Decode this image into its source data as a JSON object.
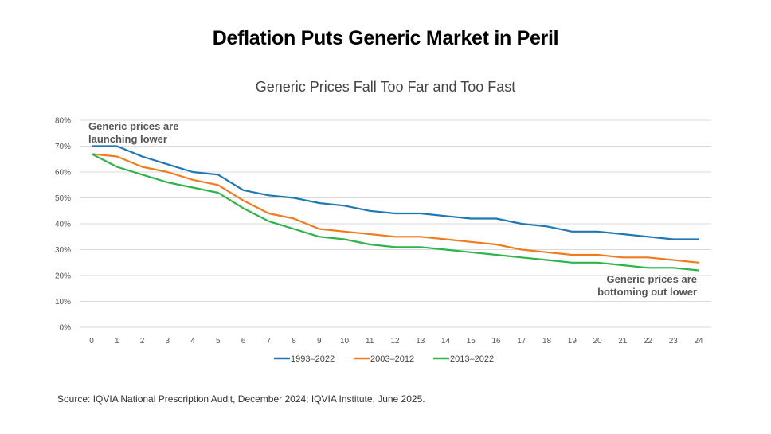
{
  "page": {
    "title": "Deflation Puts Generic Market in Peril",
    "source": "Source: IQVIA National Prescription Audit, December 2024; IQVIA Institute, June 2025."
  },
  "chart_data": {
    "type": "line",
    "title": "Generic Prices Fall Too Far and Too Fast",
    "xlabel": "",
    "ylabel": "",
    "x": [
      0,
      1,
      2,
      3,
      4,
      5,
      6,
      7,
      8,
      9,
      10,
      11,
      12,
      13,
      14,
      15,
      16,
      17,
      18,
      19,
      20,
      21,
      22,
      23,
      24
    ],
    "ylim": [
      0,
      80
    ],
    "yticks": [
      "0%",
      "10%",
      "20%",
      "30%",
      "40%",
      "50%",
      "60%",
      "70%",
      "80%"
    ],
    "grid": true,
    "legend": "bottom",
    "series": [
      {
        "name": "1993–2022",
        "color": "#1f77b4",
        "values": [
          70,
          70,
          66,
          63,
          60,
          59,
          53,
          51,
          50,
          48,
          47,
          45,
          44,
          44,
          43,
          42,
          42,
          40,
          39,
          37,
          37,
          36,
          35,
          34,
          34
        ]
      },
      {
        "name": "2003–2012",
        "color": "#f07c1e",
        "values": [
          67,
          66,
          62,
          60,
          57,
          55,
          49,
          44,
          42,
          38,
          37,
          36,
          35,
          35,
          34,
          33,
          32,
          30,
          29,
          28,
          28,
          27,
          27,
          26,
          25
        ]
      },
      {
        "name": "2013–2022",
        "color": "#2db44a",
        "values": [
          67,
          62,
          59,
          56,
          54,
          52,
          46,
          41,
          38,
          35,
          34,
          32,
          31,
          31,
          30,
          29,
          28,
          27,
          26,
          25,
          25,
          24,
          23,
          23,
          22
        ]
      }
    ],
    "annotations": [
      {
        "lines": [
          "Generic prices are",
          "launching lower"
        ],
        "position": "top-left"
      },
      {
        "lines": [
          "Generic prices are",
          "bottoming out lower"
        ],
        "position": "bottom-right"
      }
    ]
  }
}
